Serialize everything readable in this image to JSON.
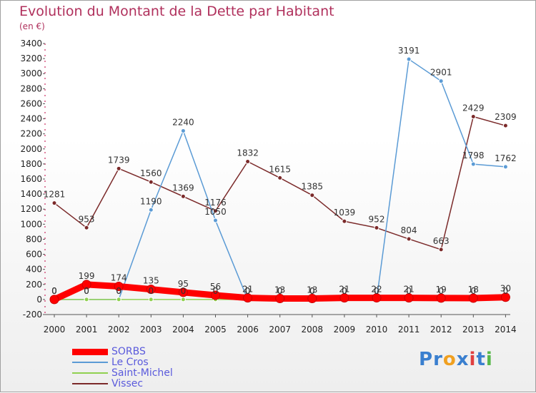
{
  "title": "Evolution du Montant de la Dette par Habitant",
  "subtitle": "(en €)",
  "logo": {
    "letters": [
      "P",
      "r",
      "o",
      "x",
      "i",
      "t",
      "i"
    ],
    "colors": [
      "#3a7fcf",
      "#3a7fcf",
      "#f0a020",
      "#3a7fcf",
      "#e04040",
      "#3a7fcf",
      "#58b84a"
    ]
  },
  "chart_data": {
    "type": "line",
    "x": [
      "2000",
      "2001",
      "2002",
      "2003",
      "2004",
      "2005",
      "2006",
      "2007",
      "2008",
      "2009",
      "2010",
      "2011",
      "2012",
      "2013",
      "2014"
    ],
    "ylim": [
      -200,
      3400
    ],
    "yticks": [
      -200,
      0,
      200,
      400,
      600,
      800,
      1000,
      1200,
      1400,
      1600,
      1800,
      2000,
      2200,
      2400,
      2600,
      2800,
      3000,
      3200,
      3400
    ],
    "grid": false,
    "legend_position": "bottom-left",
    "series": [
      {
        "name": "SORBS",
        "color": "#ff0000",
        "width": 9,
        "values": [
          0,
          199,
          174,
          135,
          95,
          56,
          21,
          13,
          13,
          21,
          22,
          21,
          19,
          18,
          30
        ]
      },
      {
        "name": "Le Cros",
        "color": "#5b9bd5",
        "width": 1.5,
        "values": [
          0,
          0,
          0,
          1190,
          2240,
          1050,
          0,
          0,
          0,
          0,
          0,
          3191,
          2901,
          1798,
          1762
        ]
      },
      {
        "name": "Saint-Michel",
        "color": "#90d050",
        "width": 1.5,
        "values": [
          0,
          0,
          0,
          0,
          0,
          0,
          0,
          0,
          0,
          0,
          0,
          0,
          0,
          0,
          0
        ]
      },
      {
        "name": "Vissec",
        "color": "#7b2a2a",
        "width": 1.5,
        "values": [
          1281,
          953,
          1739,
          1560,
          1369,
          1176,
          1832,
          1615,
          1385,
          1039,
          952,
          804,
          663,
          2429,
          2309
        ]
      }
    ]
  }
}
